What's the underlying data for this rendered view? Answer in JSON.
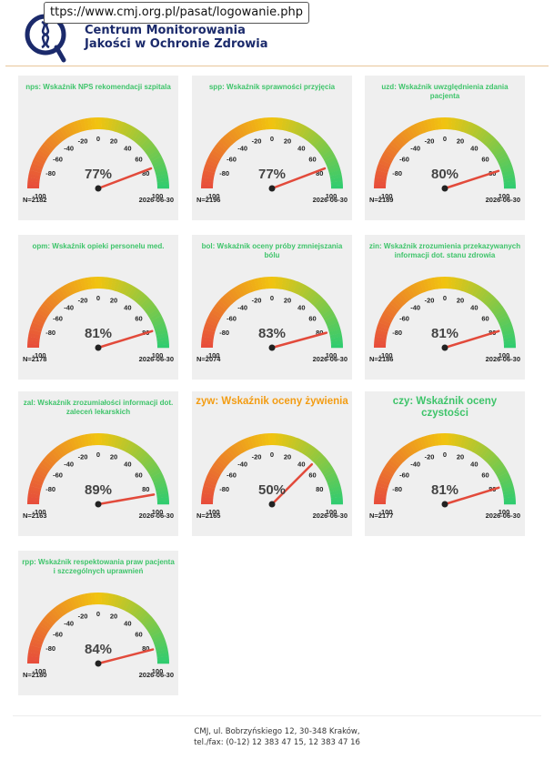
{
  "browser": {
    "url": "ttps://www.cmj.org.pl/pasat/logowanie.php"
  },
  "header": {
    "title_line1": "Centrum Monitorowania",
    "title_line2": "Jakości w Ochronie Zdrowia"
  },
  "colors": {
    "title_green": "#3ec46a",
    "title_orange": "#f39c12",
    "needle": "#e24a3b",
    "brand": "#1b2a6b"
  },
  "chart_data": [
    {
      "type": "gauge",
      "title": "nps: Wskaźnik NPS rekomendacji szpitala",
      "value": 77,
      "percent_label": "77%",
      "n": "N=2182",
      "date": "2026-06-30",
      "range": [
        -100,
        100
      ],
      "ticks": [
        "-100",
        "-80",
        "-60",
        "-40",
        "-20",
        "0",
        "20",
        "40",
        "60",
        "80",
        "100"
      ]
    },
    {
      "type": "gauge",
      "title": "spp: Wskaźnik sprawności przyjęcia",
      "value": 77,
      "percent_label": "77%",
      "n": "N=2196",
      "date": "2026-06-30",
      "range": [
        -100,
        100
      ],
      "ticks": [
        "-100",
        "-80",
        "-60",
        "-40",
        "-20",
        "0",
        "20",
        "40",
        "60",
        "80",
        "100"
      ]
    },
    {
      "type": "gauge",
      "title": "uzd: Wskaźnik uwzględnienia zdania pacjenta",
      "value": 80,
      "percent_label": "80%",
      "n": "N=2189",
      "date": "2026-06-30",
      "range": [
        -100,
        100
      ],
      "ticks": [
        "-100",
        "-80",
        "-60",
        "-40",
        "-20",
        "0",
        "20",
        "40",
        "60",
        "80",
        "100"
      ]
    },
    {
      "type": "gauge",
      "title": "opm: Wskaźnik opieki personelu med.",
      "value": 81,
      "percent_label": "81%",
      "n": "N=2178",
      "date": "2026-06-30",
      "range": [
        -100,
        100
      ],
      "ticks": [
        "-100",
        "-80",
        "-60",
        "-40",
        "-20",
        "0",
        "20",
        "40",
        "60",
        "80",
        "100"
      ]
    },
    {
      "type": "gauge",
      "title": "bol: Wskaźnik oceny próby zmniejszania bólu",
      "value": 83,
      "percent_label": "83%",
      "n": "N=2074",
      "date": "2026-06-30",
      "range": [
        -100,
        100
      ],
      "ticks": [
        "-100",
        "-80",
        "-60",
        "-40",
        "-20",
        "0",
        "20",
        "40",
        "60",
        "80",
        "100"
      ]
    },
    {
      "type": "gauge",
      "title": "zin: Wskaźnik zrozumienia przekazywanych informacji dot. stanu zdrowia",
      "value": 81,
      "percent_label": "81%",
      "n": "N=2186",
      "date": "2026-06-30",
      "range": [
        -100,
        100
      ],
      "ticks": [
        "-100",
        "-80",
        "-60",
        "-40",
        "-20",
        "0",
        "20",
        "40",
        "60",
        "80",
        "100"
      ]
    },
    {
      "type": "gauge",
      "title": "zal: Wskaźnik zrozumiałości informacji dot. zaleceń lekarskich",
      "value": 89,
      "percent_label": "89%",
      "n": "N=2163",
      "date": "2026-06-30",
      "range": [
        -100,
        100
      ],
      "ticks": [
        "-100",
        "-80",
        "-60",
        "-40",
        "-20",
        "0",
        "20",
        "40",
        "60",
        "80",
        "100"
      ]
    },
    {
      "type": "gauge",
      "title": "zyw: Wskaźnik oceny żywienia",
      "value": 50,
      "percent_label": "50%",
      "n": "N=2165",
      "date": "2026-06-30",
      "range": [
        -100,
        100
      ],
      "ticks": [
        "-100",
        "-80",
        "-60",
        "-40",
        "-20",
        "0",
        "20",
        "40",
        "60",
        "80",
        "100"
      ]
    },
    {
      "type": "gauge",
      "title": "czy: Wskaźnik oceny czystości",
      "value": 81,
      "percent_label": "81%",
      "n": "N=2177",
      "date": "2026-06-30",
      "range": [
        -100,
        100
      ],
      "ticks": [
        "-100",
        "-80",
        "-60",
        "-40",
        "-20",
        "0",
        "20",
        "40",
        "60",
        "80",
        "100"
      ]
    },
    {
      "type": "gauge",
      "title": "rpp: Wskaźnik respektowania praw pacjenta i szczególnych uprawnień",
      "value": 84,
      "percent_label": "84%",
      "n": "N=2180",
      "date": "2026-06-30",
      "range": [
        -100,
        100
      ],
      "ticks": [
        "-100",
        "-80",
        "-60",
        "-40",
        "-20",
        "0",
        "20",
        "40",
        "60",
        "80",
        "100"
      ]
    }
  ],
  "footer": {
    "line1": "CMJ, ul. Bobrzyńskiego 12, 30-348 Kraków,",
    "line2": "tel./fax: (0-12) 12 383 47 15, 12 383 47 16"
  }
}
